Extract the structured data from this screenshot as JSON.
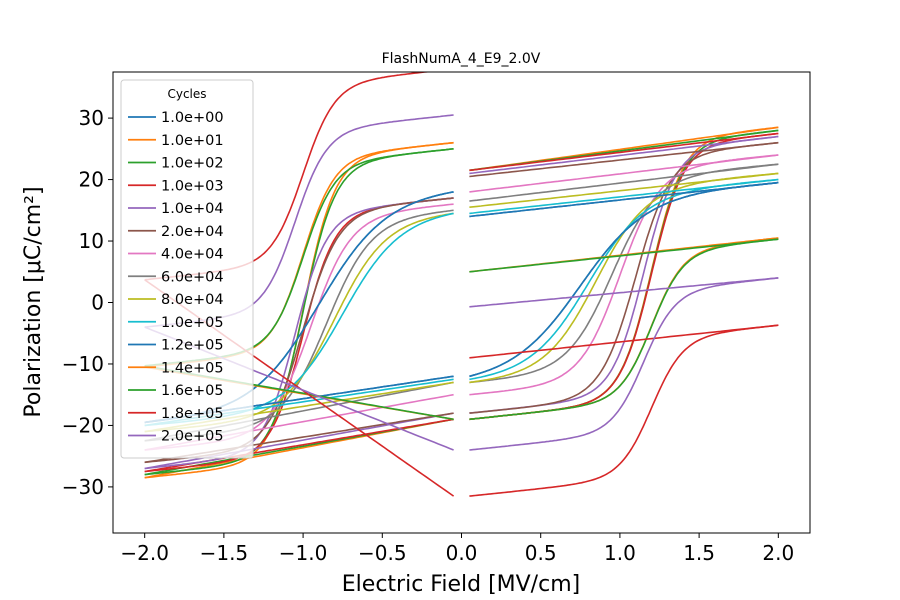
{
  "chart_data": {
    "type": "line",
    "title": "FlashNumA_4_E9_2.0V",
    "xlabel": "Electric Field [MV/cm]",
    "ylabel": "Polarization [μC/cm²]",
    "xlim": [
      -2.2,
      2.2
    ],
    "ylim": [
      -37.5,
      37.5
    ],
    "xticks": [
      -2.0,
      -1.5,
      -1.0,
      -0.5,
      0.0,
      0.5,
      1.0,
      1.5,
      2.0
    ],
    "xtick_labels": [
      "−2.0",
      "−1.5",
      "−1.0",
      "−0.5",
      "0.0",
      "0.5",
      "1.0",
      "1.5",
      "2.0"
    ],
    "yticks": [
      -30,
      -20,
      -10,
      0,
      10,
      20,
      30
    ],
    "ytick_labels": [
      "−30",
      "−20",
      "−10",
      "0",
      "10",
      "20",
      "30"
    ],
    "grid": false,
    "legend": {
      "title": "Cycles",
      "position": "upper-left"
    },
    "series": [
      {
        "name": "1.0e+00",
        "color": "#1f77b4",
        "pr": 14,
        "ps": 19.5,
        "ec_pos": 0.75,
        "ec_neg": -0.9,
        "w": 0.42,
        "m": 3.5,
        "x0": 0.05,
        "lo_start": 18,
        "up_start": -12
      },
      {
        "name": "1.0e+01",
        "color": "#ff7f0e",
        "pr": 21.5,
        "ps": 28.5,
        "ec_pos": 1.2,
        "ec_neg": -1.0,
        "w": 0.2,
        "m": 4.5,
        "x0": 0.05,
        "lo_start": 26,
        "up_start": -19
      },
      {
        "name": "1.0e+02",
        "color": "#2ca02c",
        "pr": 21.5,
        "ps": 28,
        "ec_pos": 1.2,
        "ec_neg": -1.0,
        "w": 0.2,
        "m": 4.5,
        "x0": 0.05,
        "lo_start": 25,
        "up_start": -19
      },
      {
        "name": "1.0e+03",
        "color": "#d62728",
        "pr": 21.5,
        "ps": 27.5,
        "ec_pos": 1.2,
        "ec_neg": -1.0,
        "w": 0.2,
        "m": 4.5,
        "x0": 0.05,
        "lo_start": 17,
        "up_start": -19
      },
      {
        "name": "1.0e+04",
        "color": "#9467bd",
        "pr": 21,
        "ps": 27,
        "ec_pos": 1.15,
        "ec_neg": -1.05,
        "w": 0.2,
        "m": 4.5,
        "x0": 0.05,
        "lo_start": 17,
        "up_start": -18
      },
      {
        "name": "2.0e+04",
        "color": "#8c564b",
        "pr": 20.5,
        "ps": 26,
        "ec_pos": 1.1,
        "ec_neg": -1.0,
        "w": 0.22,
        "m": 4.2,
        "x0": 0.05,
        "lo_start": 17,
        "up_start": -18
      },
      {
        "name": "4.0e+04",
        "color": "#e377c2",
        "pr": 18,
        "ps": 24,
        "ec_pos": 1.0,
        "ec_neg": -0.95,
        "w": 0.25,
        "m": 4,
        "x0": 0.05,
        "lo_start": 16,
        "up_start": -15
      },
      {
        "name": "6.0e+04",
        "color": "#7f7f7f",
        "pr": 16.5,
        "ps": 22.5,
        "ec_pos": 0.95,
        "ec_neg": -0.85,
        "w": 0.28,
        "m": 3.8,
        "x0": 0.05,
        "lo_start": 15,
        "up_start": -13
      },
      {
        "name": "8.0e+04",
        "color": "#bcbd22",
        "pr": 15.5,
        "ps": 21,
        "ec_pos": 0.85,
        "ec_neg": -0.8,
        "w": 0.32,
        "m": 3.6,
        "x0": 0.05,
        "lo_start": 14.5,
        "up_start": -13
      },
      {
        "name": "1.0e+05",
        "color": "#17becf",
        "pr": 14.5,
        "ps": 20,
        "ec_pos": 0.8,
        "ec_neg": -0.75,
        "w": 0.36,
        "m": 3.5,
        "x0": 0.05,
        "lo_start": 14.5,
        "up_start": -12.5
      },
      {
        "name": "1.2e+05",
        "color": "#1f77b4",
        "pr": 14,
        "ps": 19.5,
        "ec_pos": 0.75,
        "ec_neg": -0.9,
        "w": 0.42,
        "m": 3.5,
        "x0": 0.05,
        "lo_start": 18,
        "up_start": -12
      },
      {
        "name": "1.4e+05",
        "color": "#ff7f0e",
        "pr": 5,
        "ps": 10.5,
        "ec_pos": 1.2,
        "ec_neg": -1.0,
        "w": 0.2,
        "m": 4.5,
        "x0": 0.05,
        "lo_start": 26,
        "up_start": -19
      },
      {
        "name": "1.6e+05",
        "color": "#2ca02c",
        "pr": 5,
        "ps": 10.3,
        "ec_pos": 1.2,
        "ec_neg": -1.0,
        "w": 0.2,
        "m": 4.5,
        "x0": 0.05,
        "lo_start": 25,
        "up_start": -19
      },
      {
        "name": "1.8e+05",
        "color": "#d62728",
        "pr": -9,
        "ps": -3.7,
        "ec_pos": 1.2,
        "ec_neg": -1.0,
        "w": 0.2,
        "m": 4.5,
        "x0": 0.05,
        "lo_start": 38,
        "up_start": -31.5
      },
      {
        "name": "2.0e+05",
        "color": "#9467bd",
        "pr": -0.7,
        "ps": 4,
        "ec_pos": 1.15,
        "ec_neg": -1.05,
        "w": 0.2,
        "m": 4.5,
        "x0": 0.05,
        "lo_start": 30.5,
        "up_start": -24
      }
    ]
  }
}
